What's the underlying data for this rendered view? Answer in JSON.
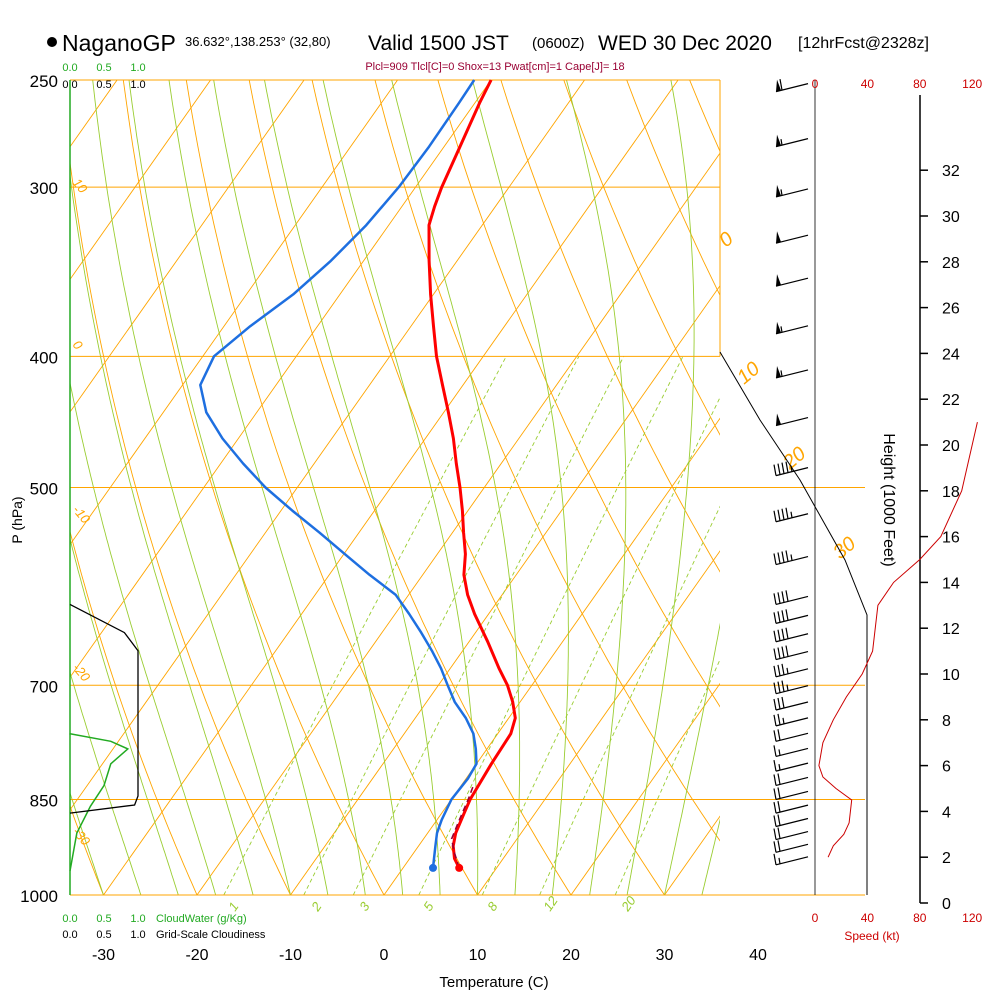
{
  "header": {
    "station": "NaganoGP",
    "coords": "36.632°,138.253° (32,80)",
    "valid": "Valid 1500 JST",
    "zulu": "(0600Z)",
    "date": "WED 30 Dec 2020",
    "fcst": "[12hrFcst@2328z]"
  },
  "indices": "Plcl=909 Tlcl[C]=0 Shox=13 Pwat[cm]=1 Cape[J]= 18",
  "colors": {
    "isobar": "#ffa500",
    "skew_t": "#ffa500",
    "mixing_ratio": "#9acd32",
    "moist_adiabat": "#9acd32",
    "temperature": "#ff0000",
    "dewpoint": "#1e6fe0",
    "parcel": "#990033",
    "cloud_water": "#22aa22",
    "wind_speed": "#cc0000",
    "cloudiness": "#000000"
  },
  "labels": {
    "cloud_scale_top_green": [
      "0.0",
      "0.5",
      "1.0"
    ],
    "cloud_scale_top_black": [
      "0.0",
      "0.5",
      "1.0"
    ],
    "cloud_scale_bottom_green": [
      "0.0",
      "0.5",
      "1.0"
    ],
    "cloud_scale_bottom_black": [
      "0.0",
      "0.5",
      "1.0"
    ],
    "cloudwater": "CloudWater (g/Kg)",
    "cloudiness": "Grid-Scale Cloudiness",
    "speed_label": "Speed (kt)",
    "speed_ticks": [
      "0",
      "40",
      "80",
      "120"
    ],
    "height_label": "Height (1000 Feet)"
  },
  "chart_data": {
    "type": "skew-t log-p sounding",
    "xlabel": "Temperature (C)",
    "ylabel": "P (hPa)",
    "x_ticks": [
      -30,
      -20,
      -10,
      0,
      10,
      20,
      30,
      40
    ],
    "p_ticks": [
      1000,
      850,
      700,
      500,
      400,
      300,
      250
    ],
    "height_ticks": [
      0,
      2,
      4,
      6,
      8,
      10,
      12,
      14,
      16,
      18,
      20,
      22,
      24,
      26,
      28,
      30,
      32
    ],
    "mixing_ratio_labels": [
      "1",
      "2",
      "3",
      "5",
      "8",
      "12",
      "20"
    ],
    "theta_labels_left": [
      "10",
      "0",
      "-10",
      "-20",
      "-30"
    ],
    "theta_labels_right": [
      "0",
      "10",
      "20",
      "30"
    ],
    "temperature": [
      {
        "p": 955,
        "t": 6.0
      },
      {
        "p": 940,
        "t": 4.8
      },
      {
        "p": 920,
        "t": 3.7
      },
      {
        "p": 900,
        "t": 3.0
      },
      {
        "p": 870,
        "t": 2.4
      },
      {
        "p": 850,
        "t": 2.0
      },
      {
        "p": 800,
        "t": 1.6
      },
      {
        "p": 760,
        "t": 1.4
      },
      {
        "p": 740,
        "t": 0.7
      },
      {
        "p": 720,
        "t": -0.8
      },
      {
        "p": 700,
        "t": -2.6
      },
      {
        "p": 680,
        "t": -4.8
      },
      {
        "p": 650,
        "t": -8.0
      },
      {
        "p": 620,
        "t": -11.5
      },
      {
        "p": 600,
        "t": -13.7
      },
      {
        "p": 580,
        "t": -15.6
      },
      {
        "p": 560,
        "t": -17.0
      },
      {
        "p": 540,
        "t": -18.8
      },
      {
        "p": 520,
        "t": -20.6
      },
      {
        "p": 500,
        "t": -22.6
      },
      {
        "p": 480,
        "t": -24.8
      },
      {
        "p": 460,
        "t": -27.0
      },
      {
        "p": 440,
        "t": -29.5
      },
      {
        "p": 420,
        "t": -32.2
      },
      {
        "p": 400,
        "t": -35.0
      },
      {
        "p": 380,
        "t": -37.6
      },
      {
        "p": 360,
        "t": -40.3
      },
      {
        "p": 340,
        "t": -43.0
      },
      {
        "p": 320,
        "t": -45.7
      },
      {
        "p": 310,
        "t": -46.5
      },
      {
        "p": 300,
        "t": -47.2
      },
      {
        "p": 280,
        "t": -48.3
      },
      {
        "p": 260,
        "t": -49.5
      },
      {
        "p": 250,
        "t": -50.0
      }
    ],
    "dewpoint": [
      {
        "p": 955,
        "t": 3.2
      },
      {
        "p": 940,
        "t": 2.6
      },
      {
        "p": 920,
        "t": 1.8
      },
      {
        "p": 900,
        "t": 1.0
      },
      {
        "p": 880,
        "t": 0.5
      },
      {
        "p": 850,
        "t": 0.0
      },
      {
        "p": 820,
        "t": 0.2
      },
      {
        "p": 800,
        "t": 0.0
      },
      {
        "p": 780,
        "t": -1.2
      },
      {
        "p": 760,
        "t": -2.6
      },
      {
        "p": 740,
        "t": -4.6
      },
      {
        "p": 720,
        "t": -7.0
      },
      {
        "p": 700,
        "t": -9.0
      },
      {
        "p": 680,
        "t": -11.0
      },
      {
        "p": 660,
        "t": -13.3
      },
      {
        "p": 640,
        "t": -15.8
      },
      {
        "p": 620,
        "t": -18.5
      },
      {
        "p": 600,
        "t": -21.4
      },
      {
        "p": 580,
        "t": -25.7
      },
      {
        "p": 560,
        "t": -29.9
      },
      {
        "p": 540,
        "t": -34.2
      },
      {
        "p": 520,
        "t": -38.8
      },
      {
        "p": 500,
        "t": -43.4
      },
      {
        "p": 480,
        "t": -47.6
      },
      {
        "p": 460,
        "t": -51.7
      },
      {
        "p": 440,
        "t": -55.4
      },
      {
        "p": 420,
        "t": -58.1
      },
      {
        "p": 400,
        "t": -58.8
      },
      {
        "p": 380,
        "t": -57.2
      },
      {
        "p": 360,
        "t": -55.0
      },
      {
        "p": 340,
        "t": -53.5
      },
      {
        "p": 320,
        "t": -52.4
      },
      {
        "p": 300,
        "t": -51.8
      },
      {
        "p": 280,
        "t": -51.6
      },
      {
        "p": 260,
        "t": -51.7
      },
      {
        "p": 250,
        "t": -51.8
      }
    ],
    "parcel": [
      {
        "p": 955,
        "t": 6.0
      },
      {
        "p": 930,
        "t": 4.3
      },
      {
        "p": 909,
        "t": 3.0
      },
      {
        "p": 880,
        "t": 2.4
      },
      {
        "p": 850,
        "t": 1.8
      },
      {
        "p": 830,
        "t": 1.3
      }
    ],
    "cloud_water": [
      {
        "p": 760,
        "t": 0.0
      },
      {
        "p": 770,
        "t": 0.6
      },
      {
        "p": 780,
        "t": 0.85
      },
      {
        "p": 800,
        "t": 0.6
      },
      {
        "p": 830,
        "t": 0.5
      },
      {
        "p": 860,
        "t": 0.3
      },
      {
        "p": 900,
        "t": 0.1
      },
      {
        "p": 960,
        "t": 0.0
      }
    ],
    "cloudiness": [
      {
        "p": 610,
        "t": 0.0
      },
      {
        "p": 640,
        "t": 0.8
      },
      {
        "p": 660,
        "t": 1.0
      },
      {
        "p": 845,
        "t": 1.0
      },
      {
        "p": 858,
        "t": 0.95
      },
      {
        "p": 870,
        "t": 0.0
      }
    ],
    "wind_speed_profile": [
      {
        "h": 2.0,
        "v": 10
      },
      {
        "h": 2.5,
        "v": 14
      },
      {
        "h": 3.0,
        "v": 22
      },
      {
        "h": 3.5,
        "v": 26
      },
      {
        "h": 4.0,
        "v": 27
      },
      {
        "h": 4.5,
        "v": 28
      },
      {
        "h": 5.0,
        "v": 16
      },
      {
        "h": 5.5,
        "v": 6
      },
      {
        "h": 6.0,
        "v": 3
      },
      {
        "h": 7.0,
        "v": 6
      },
      {
        "h": 8.0,
        "v": 14
      },
      {
        "h": 9.0,
        "v": 24
      },
      {
        "h": 10.0,
        "v": 36
      },
      {
        "h": 11.0,
        "v": 44
      },
      {
        "h": 13.0,
        "v": 48
      },
      {
        "h": 14.0,
        "v": 60
      },
      {
        "h": 15.0,
        "v": 80
      },
      {
        "h": 16.0,
        "v": 96
      },
      {
        "h": 18.0,
        "v": 112
      },
      {
        "h": 21.0,
        "v": 124
      }
    ],
    "wind_barbs": [
      {
        "p": 255,
        "speed": 60
      },
      {
        "p": 280,
        "speed": 55
      },
      {
        "p": 305,
        "speed": 55
      },
      {
        "p": 330,
        "speed": 50
      },
      {
        "p": 355,
        "speed": 50
      },
      {
        "p": 385,
        "speed": 55
      },
      {
        "p": 415,
        "speed": 55
      },
      {
        "p": 450,
        "speed": 50
      },
      {
        "p": 490,
        "speed": 45
      },
      {
        "p": 530,
        "speed": 45
      },
      {
        "p": 570,
        "speed": 45
      },
      {
        "p": 610,
        "speed": 40
      },
      {
        "p": 630,
        "speed": 40
      },
      {
        "p": 650,
        "speed": 40
      },
      {
        "p": 670,
        "speed": 40
      },
      {
        "p": 690,
        "speed": 35
      },
      {
        "p": 710,
        "speed": 35
      },
      {
        "p": 730,
        "speed": 30
      },
      {
        "p": 750,
        "speed": 25
      },
      {
        "p": 770,
        "speed": 20
      },
      {
        "p": 790,
        "speed": 15
      },
      {
        "p": 810,
        "speed": 15
      },
      {
        "p": 830,
        "speed": 20
      },
      {
        "p": 850,
        "speed": 20
      },
      {
        "p": 870,
        "speed": 20
      },
      {
        "p": 890,
        "speed": 20
      },
      {
        "p": 910,
        "speed": 20
      },
      {
        "p": 930,
        "speed": 20
      },
      {
        "p": 950,
        "speed": 15
      }
    ],
    "grid": true
  }
}
